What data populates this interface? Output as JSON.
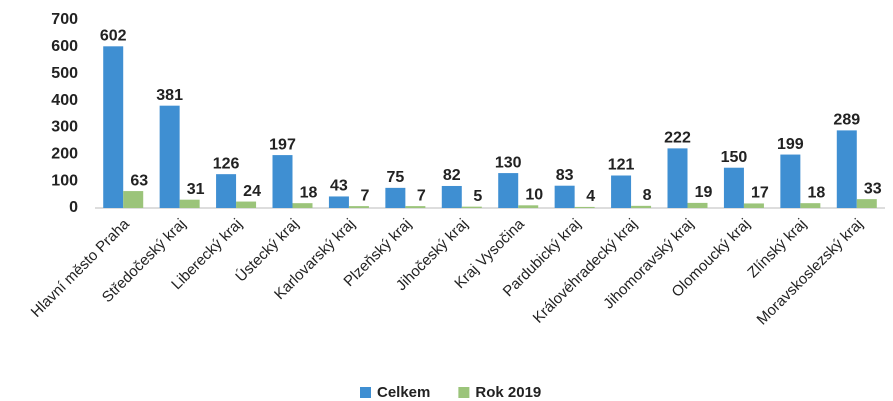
{
  "chart_data": {
    "type": "bar",
    "categories": [
      "Hlavní město Praha",
      "Středočeský kraj",
      "Liberecký kraj",
      "Ústecký kraj",
      "Karlovarský kraj",
      "Plzeňský kraj",
      "Jihočeský kraj",
      "Kraj Vysočina",
      "Pardubický kraj",
      "Královéhradecký kraj",
      "Jihomoravský kraj",
      "Olomoucký kraj",
      "Zlínský kraj",
      "Moravskoslezský kraj"
    ],
    "series": [
      {
        "name": "Celkem",
        "color": "#3f8fd2",
        "values": [
          602,
          381,
          126,
          197,
          43,
          75,
          82,
          130,
          83,
          121,
          222,
          150,
          199,
          289
        ]
      },
      {
        "name": "Rok 2019",
        "color": "#9bc47a",
        "values": [
          63,
          31,
          24,
          18,
          7,
          7,
          5,
          10,
          4,
          8,
          19,
          17,
          18,
          33
        ]
      }
    ],
    "ylim": [
      0,
      700
    ],
    "yticks": [
      0,
      100,
      200,
      300,
      400,
      500,
      600,
      700
    ],
    "grid": false,
    "legend": "bottom"
  }
}
